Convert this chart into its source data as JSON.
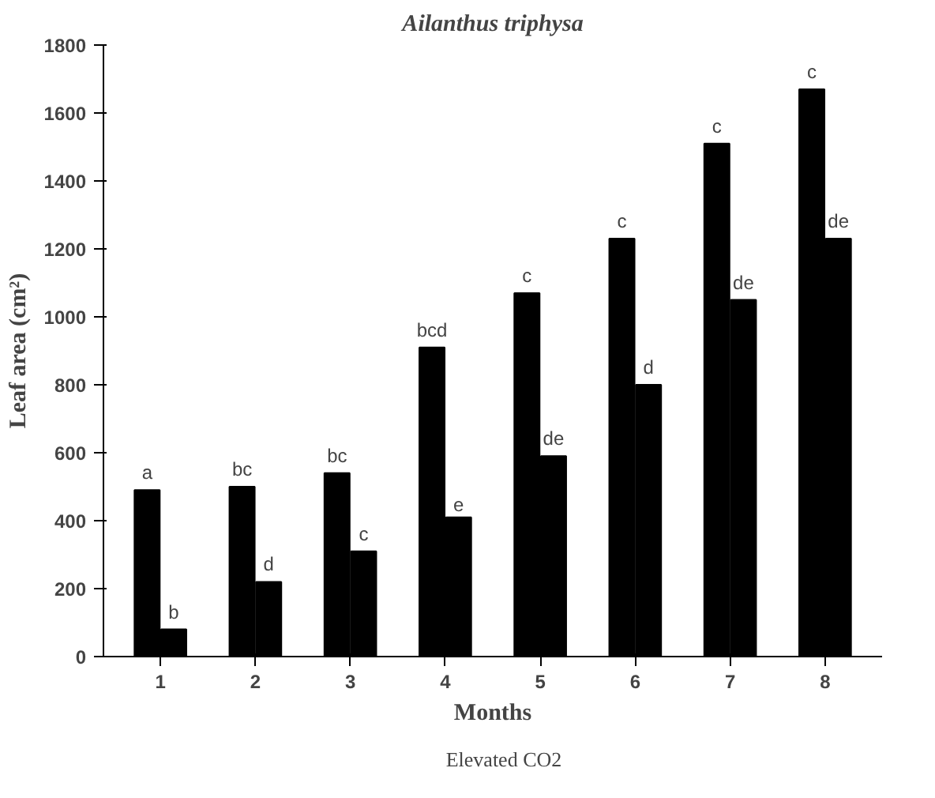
{
  "chart_data": {
    "type": "bar",
    "title": "Ailanthus triphysa",
    "xlabel": "Months",
    "ylabel": "Leaf area (cm²)",
    "categories": [
      "1",
      "2",
      "3",
      "4",
      "5",
      "6",
      "7",
      "8"
    ],
    "series": [
      {
        "name": "Elevated CO2",
        "color": "#000000",
        "values": [
          490,
          500,
          540,
          910,
          1070,
          1230,
          1510,
          1670
        ]
      },
      {
        "color": "#000000",
        "values": [
          80,
          220,
          310,
          410,
          590,
          800,
          1050,
          1230
        ]
      }
    ],
    "ylim": [
      0,
      1800
    ],
    "yticks": [
      0,
      200,
      400,
      600,
      800,
      1000,
      1200,
      1400,
      1600,
      1800
    ],
    "grid": false,
    "legend": "bottom",
    "annotations": [
      {
        "text": "a",
        "x": "1",
        "y": 490
      },
      {
        "text": "bc",
        "x": "2",
        "y": 500
      },
      {
        "text": "bc",
        "x": "3",
        "y": 540
      },
      {
        "text": "bcd",
        "x": "4",
        "y": 910
      },
      {
        "text": "c",
        "x": "5",
        "y": 1070
      },
      {
        "text": "c",
        "x": "6",
        "y": 1230
      },
      {
        "text": "c",
        "x": "7",
        "y": 1510
      },
      {
        "text": "c",
        "x": "8",
        "y": 1670
      },
      {
        "text": "b",
        "x": "1",
        "y": 80
      },
      {
        "text": "d",
        "x": "2",
        "y": 220
      },
      {
        "text": "c",
        "x": "3",
        "y": 310
      },
      {
        "text": "e",
        "x": "4",
        "y": 410
      },
      {
        "text": "de",
        "x": "5",
        "y": 590
      },
      {
        "text": "d",
        "x": "6",
        "y": 800
      },
      {
        "text": "de",
        "x": "7",
        "y": 1050
      },
      {
        "text": "de",
        "x": "8",
        "y": 1230
      }
    ]
  }
}
